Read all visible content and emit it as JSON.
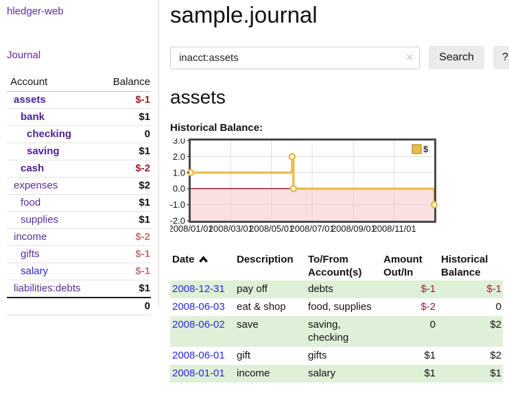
{
  "app": {
    "brand": "hledger-web",
    "nav_journal": "Journal"
  },
  "sidebar": {
    "headers": [
      "Account",
      "Balance"
    ],
    "rows": [
      {
        "account": "assets",
        "balance": "$-1",
        "depth": 1,
        "current": true,
        "tone": "neg-strong"
      },
      {
        "account": "bank",
        "balance": "$1",
        "depth": 2,
        "current": true,
        "tone": "pos"
      },
      {
        "account": "checking",
        "balance": "0",
        "depth": 3,
        "current": true,
        "tone": "pos"
      },
      {
        "account": "saving",
        "balance": "$1",
        "depth": 3,
        "current": true,
        "tone": "pos"
      },
      {
        "account": "cash",
        "balance": "$-2",
        "depth": 2,
        "current": true,
        "tone": "neg-strong"
      },
      {
        "account": "expenses",
        "balance": "$2",
        "depth": 1,
        "current": false,
        "tone": "pos"
      },
      {
        "account": "food",
        "balance": "$1",
        "depth": 2,
        "current": false,
        "tone": "pos"
      },
      {
        "account": "supplies",
        "balance": "$1",
        "depth": 2,
        "current": false,
        "tone": "pos"
      },
      {
        "account": "income",
        "balance": "$-2",
        "depth": 1,
        "current": false,
        "tone": "neg-soft"
      },
      {
        "account": "gifts",
        "balance": "$-1",
        "depth": 2,
        "current": false,
        "tone": "neg-soft"
      },
      {
        "account": "salary",
        "balance": "$-1",
        "depth": 2,
        "current": false,
        "tone": "neg-soft",
        "link": "blue"
      },
      {
        "account": "liabilities:debts",
        "balance": "$1",
        "depth": 1,
        "current": false,
        "tone": "pos"
      }
    ],
    "total": "0"
  },
  "main": {
    "title": "sample.journal",
    "search": {
      "value": "inacct:assets",
      "clear_icon": "×",
      "button_label": "Search",
      "help_label": "?"
    },
    "account_heading": "assets",
    "chart_label": "Historical Balance:"
  },
  "chart_data": {
    "type": "line",
    "interpolation": "step-after",
    "title": "Historical Balance",
    "legend": [
      {
        "label": "$",
        "color": "#e9bd4a"
      }
    ],
    "legend_position": "top-right",
    "grid": true,
    "ylim": [
      -2,
      3
    ],
    "yticks": [
      3.0,
      2.0,
      1.0,
      0.0,
      -1.0,
      -2.0
    ],
    "xticks": [
      {
        "label": "2008/01/01",
        "day": 0
      },
      {
        "label": "2008/03/01",
        "day": 60
      },
      {
        "label": "2008/05/01",
        "day": 121
      },
      {
        "label": "2008/07/01",
        "day": 182
      },
      {
        "label": "2008/09/01",
        "day": 244
      },
      {
        "label": "2008/11/01",
        "day": 305
      }
    ],
    "x_max_day": 365,
    "points": [
      {
        "date": "2008-01-01",
        "day": 0,
        "value": 1
      },
      {
        "date": "2008-06-01",
        "day": 152,
        "value": 2
      },
      {
        "date": "2008-06-03",
        "day": 154,
        "value": 0
      },
      {
        "date": "2008-12-31",
        "day": 365,
        "value": -1
      }
    ],
    "colors": {
      "line": "#e9bd4a",
      "marker_fill": "#ffffff",
      "negative_region": "#f6c8c8",
      "zero_line": "#9a0000",
      "grid": "#dcdcdc",
      "border": "#4a4a4a",
      "legend_border": "#b1902c",
      "tick": "#444444",
      "label": "#111111"
    }
  },
  "register": {
    "headers": [
      "Date",
      "Description",
      "To/From Account(s)",
      "Amount Out/In",
      "Historical Balance"
    ],
    "sort_icon": "chevron-up",
    "rows": [
      {
        "date": "2008-12-31",
        "description": "pay off",
        "accounts": "debts",
        "amount": "$-1",
        "balance": "$-1"
      },
      {
        "date": "2008-06-03",
        "description": "eat & shop",
        "accounts": "food, supplies",
        "amount": "$-2",
        "balance": "0"
      },
      {
        "date": "2008-06-02",
        "description": "save",
        "accounts": "saving, checking",
        "amount": "0",
        "balance": "$2"
      },
      {
        "date": "2008-06-01",
        "description": "gift",
        "accounts": "gifts",
        "amount": "$1",
        "balance": "$2"
      },
      {
        "date": "2008-01-01",
        "description": "income",
        "accounts": "salary",
        "amount": "$1",
        "balance": "$1"
      }
    ]
  }
}
